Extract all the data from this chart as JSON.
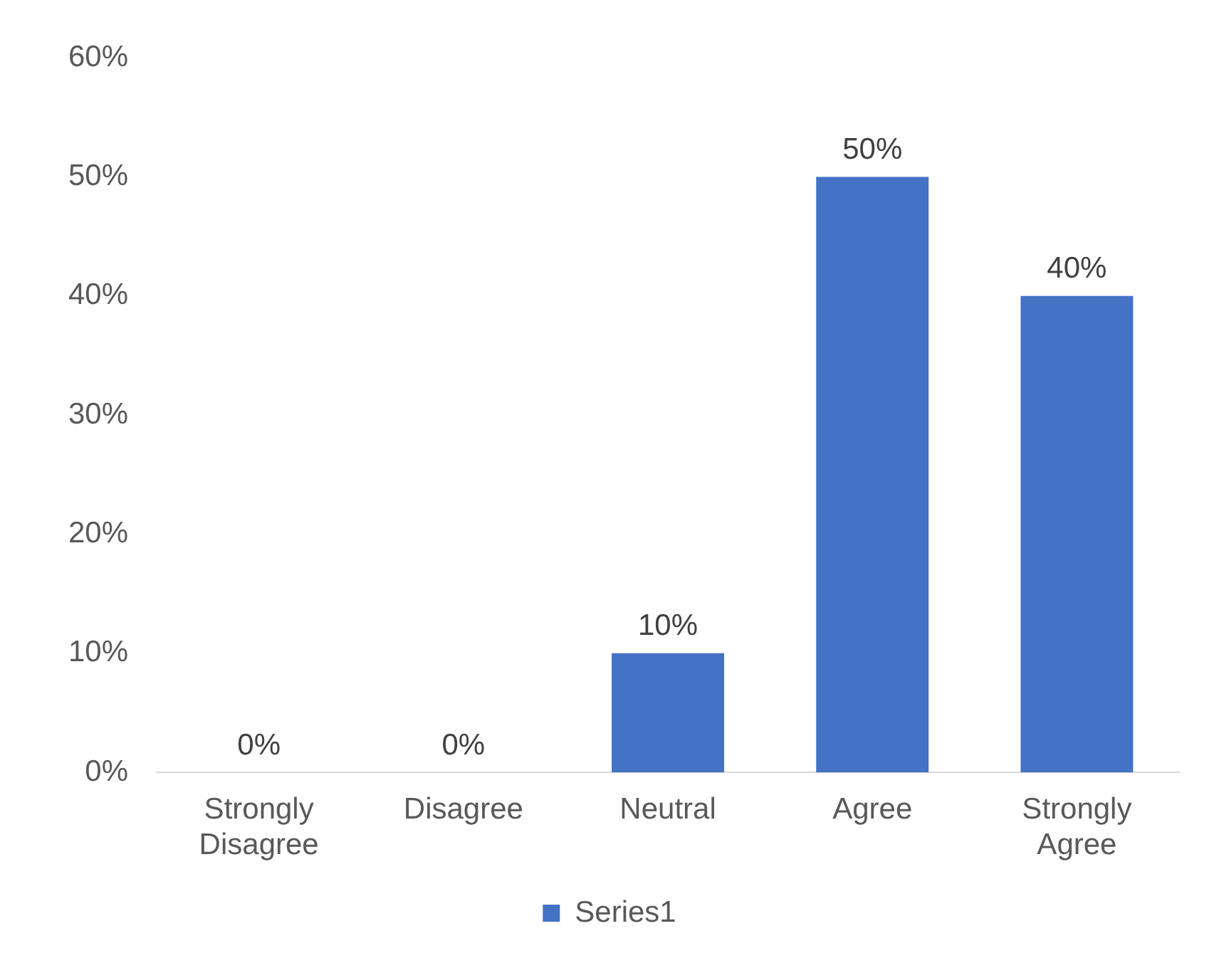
{
  "chart_data": {
    "type": "bar",
    "categories": [
      "Strongly Disagree",
      "Disagree",
      "Neutral",
      "Agree",
      "Strongly Agree"
    ],
    "series": [
      {
        "name": "Series1",
        "color": "#4472c4",
        "values": [
          0,
          0,
          10,
          50,
          40
        ],
        "value_labels": [
          "0%",
          "0%",
          "10%",
          "50%",
          "40%"
        ]
      }
    ],
    "ylim": [
      0,
      60
    ],
    "yticks": [
      {
        "value": 0,
        "label": "0%"
      },
      {
        "value": 10,
        "label": "10%"
      },
      {
        "value": 20,
        "label": "20%"
      },
      {
        "value": 30,
        "label": "30%"
      },
      {
        "value": 40,
        "label": "40%"
      },
      {
        "value": 50,
        "label": "50%"
      },
      {
        "value": 60,
        "label": "60%"
      }
    ],
    "grid": false,
    "legend": "bottom"
  }
}
